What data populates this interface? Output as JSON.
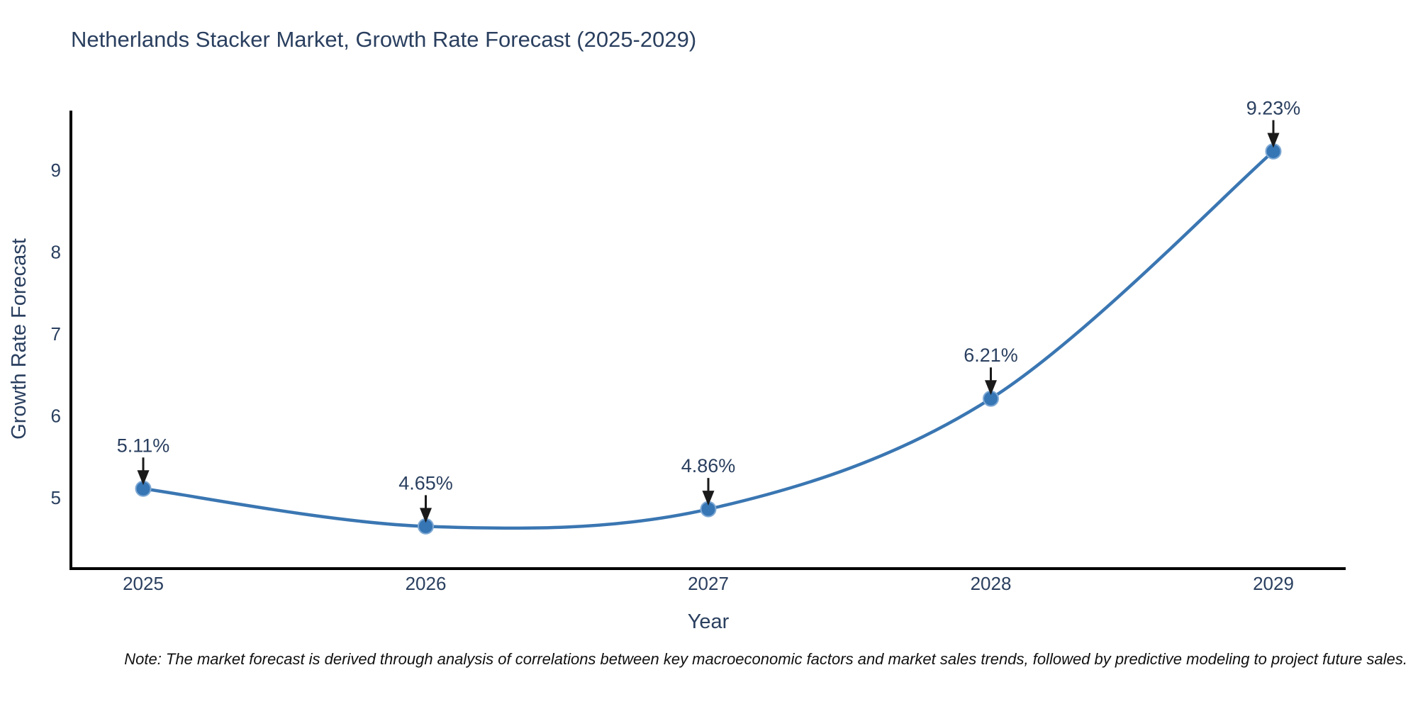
{
  "chart_data": {
    "type": "line",
    "title": "Netherlands Stacker Market, Growth Rate Forecast (2025-2029)",
    "xlabel": "Year",
    "ylabel": "Growth Rate Forecast",
    "x": [
      2025,
      2026,
      2027,
      2028,
      2029
    ],
    "y": [
      5.11,
      4.65,
      4.86,
      6.21,
      9.23
    ],
    "point_labels": [
      "5.11%",
      "4.65%",
      "4.86%",
      "6.21%",
      "9.23%"
    ],
    "xticks": [
      "2025",
      "2026",
      "2027",
      "2028",
      "2029"
    ],
    "yticks": [
      5,
      6,
      7,
      8,
      9
    ],
    "xlim": [
      2024.744,
      2029.256
    ],
    "ylim": [
      4.134,
      9.71
    ],
    "grid": false,
    "line_shape": "spline",
    "legend": "none",
    "colors": {
      "line": "#3a76b2",
      "marker_fill": "#3776b5",
      "marker_stroke": "#7fa9d4",
      "axis_line": "#000000",
      "text": "#2a3f5f",
      "arrow": "#1a1a1a",
      "note": "#111111",
      "background": "#ffffff"
    }
  },
  "note": "Note: The market forecast is derived through analysis of correlations between key macroeconomic factors and market sales trends, followed by predictive modeling to project future sales."
}
